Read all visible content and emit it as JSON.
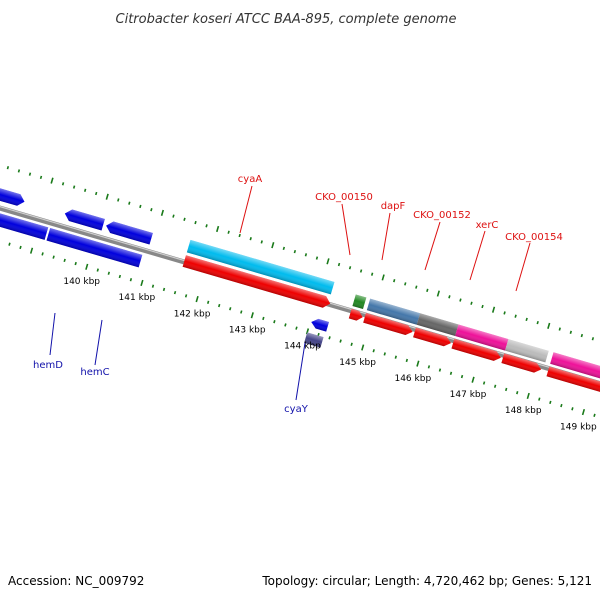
{
  "title": "Citrobacter koseri ATCC BAA-895, complete genome",
  "footer": {
    "accession": "Accession: NC_009792",
    "summary": "Topology: circular; Length: 4,720,462 bp; Genes: 5,121"
  },
  "colors": {
    "label_red": "#dd1111",
    "label_blue": "#1111aa",
    "backbone": "#888888",
    "tick": "#1a7a1a",
    "cds": "#ee0000",
    "forward_feature": "#00bbee",
    "blue_gene": "#0000dd",
    "magenta": "#ee1199",
    "grey": "#bbbbbb",
    "darkgrey": "#666666",
    "steelblue": "#4477aa",
    "green": "#228822",
    "navy": "#444488"
  },
  "scale": {
    "unit": "kbp",
    "tick_labels": [
      "140 kbp",
      "141 kbp",
      "142 kbp",
      "143 kbp",
      "144 kbp",
      "145 kbp",
      "146 kbp",
      "147 kbp",
      "148 kbp",
      "149 kbp"
    ]
  },
  "top_labels": [
    {
      "text": "cyaA"
    },
    {
      "text": "CKO_00150"
    },
    {
      "text": "dapF"
    },
    {
      "text": "CKO_00152"
    },
    {
      "text": "xerC"
    },
    {
      "text": "CKO_00154"
    }
  ],
  "bottom_labels": [
    {
      "text": "hemD"
    },
    {
      "text": "hemC"
    },
    {
      "text": "cyaY"
    }
  ]
}
